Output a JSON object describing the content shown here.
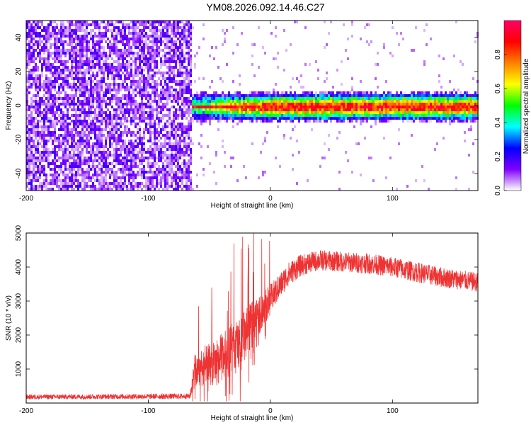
{
  "title": "YM08.2026.092.14.46.C27",
  "chart_data": [
    {
      "type": "heatmap",
      "name": "spectrogram",
      "xlabel": "Height of straight line (km)",
      "ylabel": "Frequency (Hz)",
      "xlim": [
        -200,
        170
      ],
      "ylim": [
        -50,
        50
      ],
      "xticks": [
        -200,
        -100,
        0,
        100
      ],
      "yticks": [
        -40,
        -20,
        0,
        20,
        40
      ],
      "noise_region_x": [
        -200,
        -66
      ],
      "signal_start_x": -66,
      "signal_center_freq": 0,
      "signal_halfwidth_hz": 4,
      "colorbar": {
        "label": "Normalized spectral amplitude",
        "range": [
          0.0,
          1.0
        ],
        "ticks": [
          "0.0",
          "0.2",
          "0.4",
          "0.6",
          "0.8"
        ],
        "colormap": [
          "#ffffff",
          "#8000ff",
          "#0000ff",
          "#00ffff",
          "#00ff00",
          "#ffff00",
          "#ff8000",
          "#ff0000",
          "#ff0066"
        ]
      }
    },
    {
      "type": "line",
      "name": "snr",
      "xlabel": "Height of straight line (km)",
      "ylabel": "SNR (10 * v/v)",
      "xlim": [
        -200,
        170
      ],
      "ylim": [
        0,
        5000
      ],
      "xticks": [
        -200,
        -100,
        0,
        100
      ],
      "yticks": [
        1000,
        2000,
        3000,
        4000,
        5000
      ],
      "color": "#ee3333",
      "envelope": {
        "x": [
          -200,
          -66,
          -62,
          -55,
          -45,
          -35,
          -25,
          -15,
          -5,
          5,
          15,
          25,
          40,
          60,
          80,
          100,
          120,
          140,
          170
        ],
        "mean": [
          180,
          200,
          900,
          1100,
          1150,
          1500,
          1700,
          2300,
          2800,
          3300,
          3800,
          4050,
          4200,
          4150,
          4100,
          4000,
          3850,
          3700,
          3550
        ],
        "spread": [
          70,
          80,
          500,
          600,
          650,
          800,
          850,
          700,
          500,
          400,
          350,
          320,
          300,
          300,
          300,
          300,
          300,
          300,
          280
        ]
      }
    }
  ]
}
